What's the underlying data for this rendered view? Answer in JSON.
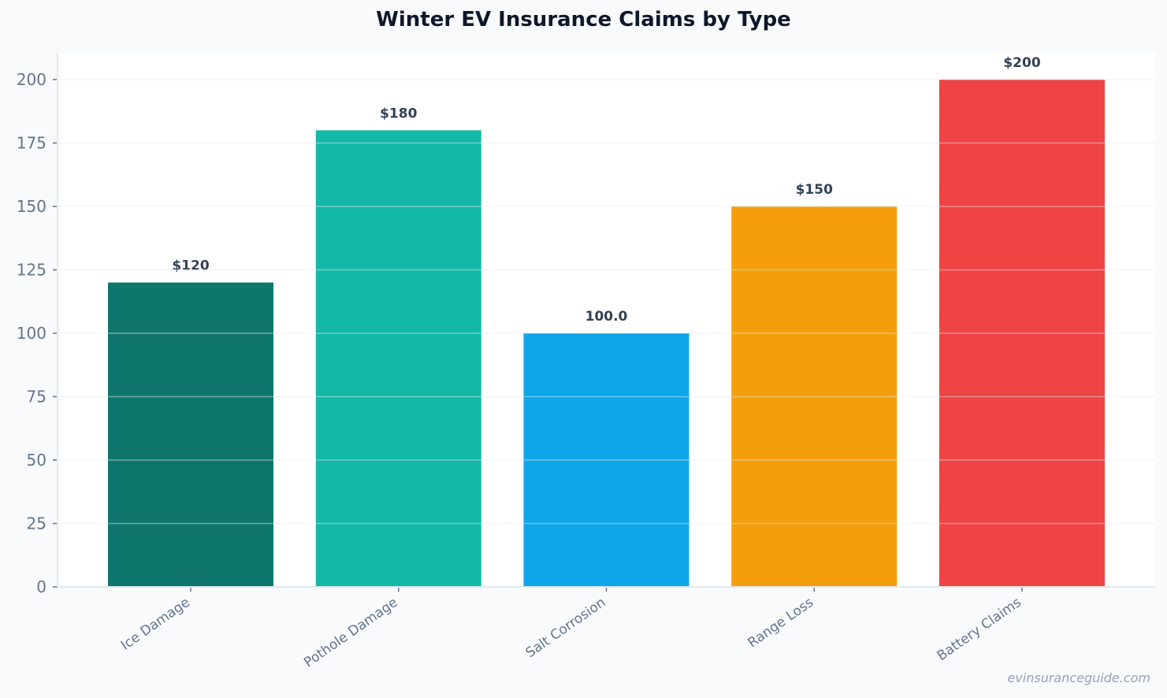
{
  "chart_data": {
    "type": "bar",
    "title": "Winter EV Insurance Claims by Type",
    "xlabel": "",
    "ylabel": "",
    "categories": [
      "Ice Damage",
      "Pothole Damage",
      "Salt Corrosion",
      "Range Loss",
      "Battery Claims"
    ],
    "values": [
      120,
      180,
      100,
      150,
      200
    ],
    "data_labels": [
      "$120",
      "$180",
      "100.0",
      "$150",
      "$200"
    ],
    "colors": [
      "#0f766e",
      "#14b8a6",
      "#0ea5e9",
      "#f59e0b",
      "#ef4444"
    ],
    "ylim": [
      0,
      210
    ],
    "yticks": [
      0,
      25,
      50,
      75,
      100,
      125,
      150,
      175,
      200
    ],
    "grid": true,
    "legend": "none"
  },
  "watermark": "evinsuranceguide.com"
}
